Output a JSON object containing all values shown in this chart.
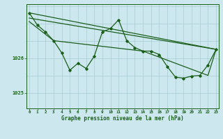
{
  "title": "Graphe pression niveau de la mer (hPa)",
  "bg_color": "#cce8ee",
  "line_color": "#1a5e1a",
  "grid_color_major": "#aaccd4",
  "grid_color_minor": "#c8e4ea",
  "x_ticks": [
    0,
    1,
    2,
    3,
    4,
    5,
    6,
    7,
    8,
    9,
    10,
    11,
    12,
    13,
    14,
    15,
    16,
    17,
    18,
    19,
    20,
    21,
    22,
    23
  ],
  "y_ticks": [
    1025,
    1026
  ],
  "ylim": [
    1024.55,
    1027.55
  ],
  "xlim": [
    -0.3,
    23.3
  ],
  "values_main_x": [
    0,
    1,
    2,
    3,
    4,
    5,
    6,
    7,
    8,
    9,
    10,
    11,
    12,
    13,
    14,
    15,
    16,
    17,
    18,
    19,
    20,
    21,
    22,
    23
  ],
  "values_main_y": [
    1027.3,
    1026.95,
    1026.75,
    1026.5,
    1026.15,
    1025.65,
    1025.85,
    1025.7,
    1026.05,
    1026.75,
    1026.85,
    1027.1,
    1026.5,
    1026.3,
    1026.2,
    1026.2,
    1026.1,
    1025.75,
    1025.45,
    1025.42,
    1025.48,
    1025.5,
    1025.8,
    1026.25
  ],
  "trend1_x": [
    0,
    23
  ],
  "trend1_y": [
    1027.3,
    1026.25
  ],
  "trend2_x": [
    0,
    23
  ],
  "trend2_y": [
    1027.15,
    1026.25
  ],
  "trend3_x": [
    0,
    3,
    14,
    22,
    23
  ],
  "trend3_y": [
    1027.05,
    1026.5,
    1026.2,
    1025.5,
    1026.25
  ]
}
